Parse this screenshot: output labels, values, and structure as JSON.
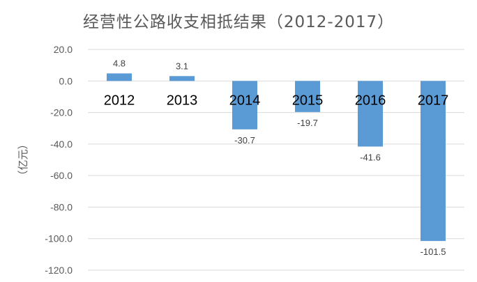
{
  "chart_data": {
    "type": "bar",
    "title": "经营性公路收支相抵结果（2012-2017）",
    "ylabel": "（亿元）",
    "xlabel": "",
    "categories": [
      "2012",
      "2013",
      "2014",
      "2015",
      "2016",
      "2017"
    ],
    "values": [
      4.8,
      3.1,
      -30.7,
      -19.7,
      -41.6,
      -101.5
    ],
    "data_labels": [
      "4.8",
      "3.1",
      "-30.7",
      "-19.7",
      "-41.6",
      "-101.5"
    ],
    "ylim": [
      -120,
      20
    ],
    "yticks": [
      20,
      0,
      -20,
      -40,
      -60,
      -80,
      -100,
      -120
    ],
    "ytick_labels": [
      "20.0",
      "0.0",
      "-20.0",
      "-40.0",
      "-60.0",
      "-80.0",
      "-100.0",
      "-120.0"
    ],
    "grid": true,
    "legend": "none",
    "bar_color": "#5B9BD5"
  }
}
